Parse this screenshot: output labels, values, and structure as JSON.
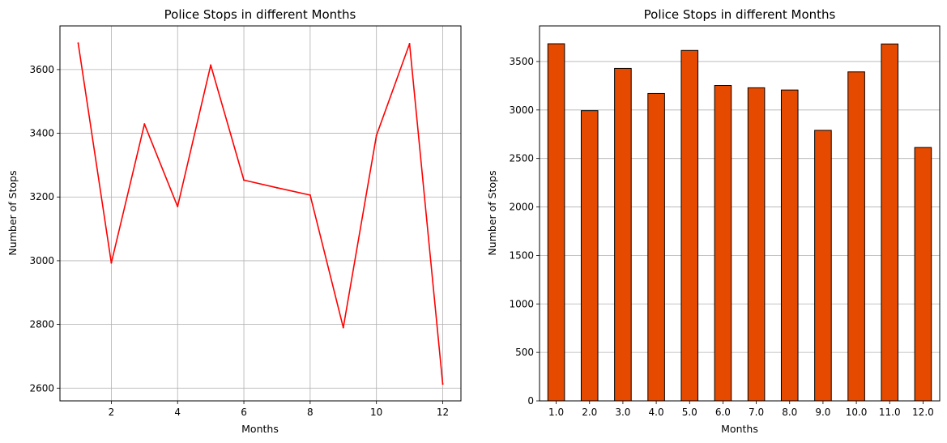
{
  "chart_data": [
    {
      "type": "line",
      "title": "Police Stops in different Months",
      "xlabel": "Months",
      "ylabel": "Number of Stops",
      "x": [
        1,
        2,
        3,
        4,
        5,
        6,
        7,
        8,
        9,
        10,
        11,
        12
      ],
      "series": [
        {
          "values": [
            3683,
            2993,
            3429,
            3170,
            3614,
            3253,
            3229,
            3206,
            2790,
            3393,
            3681,
            2613
          ]
        }
      ],
      "xlim": [
        0.45,
        12.55
      ],
      "ylim": [
        2560,
        3737
      ],
      "xticks": [
        2,
        4,
        6,
        8,
        10,
        12
      ],
      "yticks": [
        2600,
        2800,
        3000,
        3200,
        3400,
        3600
      ],
      "grid": true,
      "colors": {
        "line": "#ff0000",
        "grid": "#b0b0b0"
      }
    },
    {
      "type": "bar",
      "title": "Police Stops in different Months",
      "xlabel": "Months",
      "ylabel": "Number of Stops",
      "categories": [
        "1.0",
        "2.0",
        "3.0",
        "4.0",
        "5.0",
        "6.0",
        "7.0",
        "8.0",
        "9.0",
        "10.0",
        "11.0",
        "12.0"
      ],
      "values": [
        3683,
        2993,
        3429,
        3170,
        3614,
        3253,
        3229,
        3206,
        2790,
        3393,
        3681,
        2613
      ],
      "ylim": [
        0,
        3867
      ],
      "yticks": [
        0,
        500,
        1000,
        1500,
        2000,
        2500,
        3000,
        3500
      ],
      "grid": "y-axis",
      "colors": {
        "bar": "#e64a00",
        "edge": "#000000",
        "grid": "#b0b0b0"
      }
    }
  ]
}
